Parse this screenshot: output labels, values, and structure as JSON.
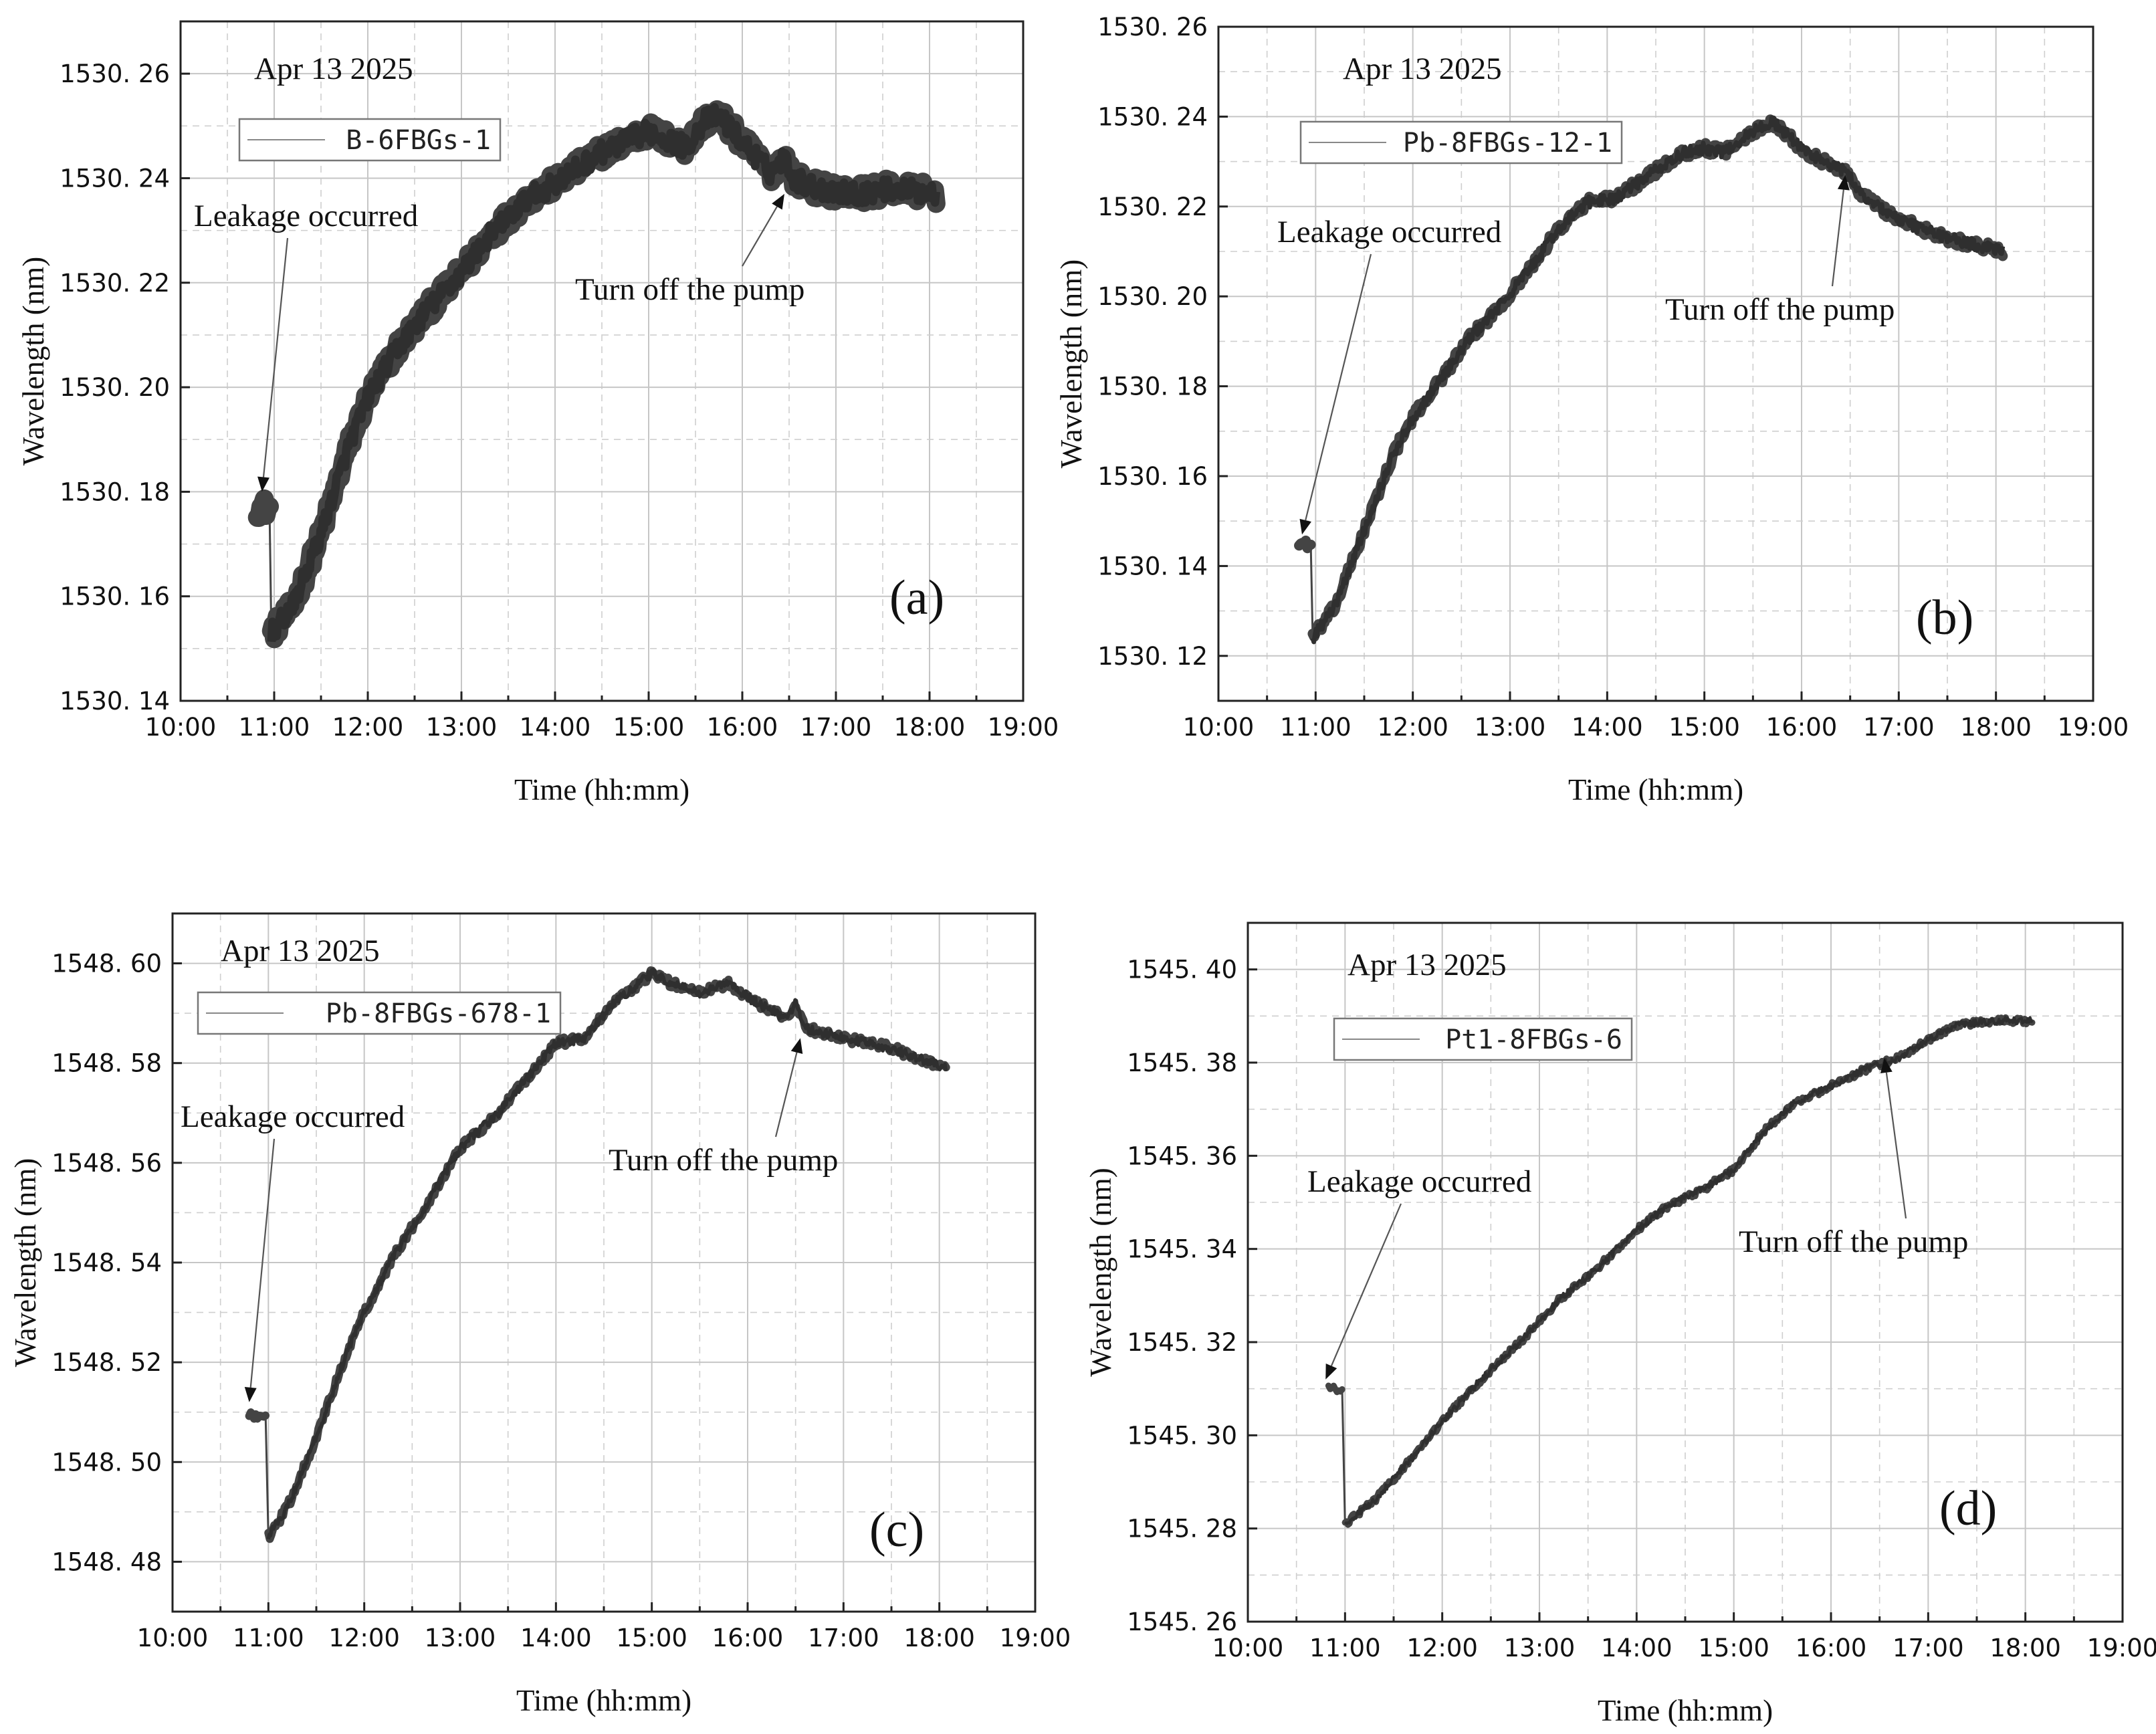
{
  "figure": {
    "panels_order": [
      "a",
      "b",
      "c",
      "d"
    ]
  },
  "chart_data": [
    {
      "id": "a",
      "type": "line",
      "panel_label": "(a)",
      "date": "Apr 13 2025",
      "legend": "B-6FBGs-1",
      "xlabel": "Time (hh:mm)",
      "ylabel": "Wavelength (nm)",
      "xlim": [
        10,
        19
      ],
      "ylim": [
        1530.14,
        1530.27
      ],
      "xticks": [
        10,
        11,
        12,
        13,
        14,
        15,
        16,
        17,
        18,
        19
      ],
      "xtick_labels": [
        "10:00",
        "11:00",
        "12:00",
        "13:00",
        "14:00",
        "15:00",
        "16:00",
        "17:00",
        "18:00",
        "19:00"
      ],
      "yticks": [
        1530.14,
        1530.16,
        1530.18,
        1530.2,
        1530.22,
        1530.24,
        1530.26
      ],
      "ytick_labels": [
        "1530. 14",
        "1530. 16",
        "1530. 18",
        "1530. 20",
        "1530. 22",
        "1530. 24",
        "1530. 26"
      ],
      "noise": 0.004,
      "segment_before_leak": [
        [
          10.82,
          1530.177
        ],
        [
          10.95,
          1530.177
        ]
      ],
      "series": [
        [
          10.97,
          1530.153
        ],
        [
          11.2,
          1530.158
        ],
        [
          11.5,
          1530.172
        ],
        [
          11.8,
          1530.189
        ],
        [
          12.0,
          1530.198
        ],
        [
          12.3,
          1530.207
        ],
        [
          12.6,
          1530.214
        ],
        [
          13.0,
          1530.222
        ],
        [
          13.3,
          1530.229
        ],
        [
          13.7,
          1530.236
        ],
        [
          14.0,
          1530.239
        ],
        [
          14.5,
          1530.245
        ],
        [
          15.0,
          1530.249
        ],
        [
          15.25,
          1530.247
        ],
        [
          15.4,
          1530.246
        ],
        [
          15.6,
          1530.251
        ],
        [
          15.75,
          1530.252
        ],
        [
          16.0,
          1530.247
        ],
        [
          16.3,
          1530.241
        ],
        [
          16.45,
          1530.244
        ],
        [
          16.55,
          1530.24
        ],
        [
          16.8,
          1530.238
        ],
        [
          17.2,
          1530.237
        ],
        [
          17.6,
          1530.238
        ],
        [
          18.07,
          1530.237
        ]
      ],
      "annotations": [
        {
          "text": "Leakage occurred",
          "target": [
            10.87,
            1530.18
          ]
        },
        {
          "text": "Turn off the pump",
          "target": [
            16.45,
            1530.237
          ]
        }
      ]
    },
    {
      "id": "b",
      "type": "line",
      "panel_label": "(b)",
      "date": "Apr 13 2025",
      "legend": "Pb-8FBGs-12-1",
      "xlabel": "Time (hh:mm)",
      "ylabel": "Wavelength (nm)",
      "xlim": [
        10,
        19
      ],
      "ylim": [
        1530.11,
        1530.26
      ],
      "xticks": [
        10,
        11,
        12,
        13,
        14,
        15,
        16,
        17,
        18,
        19
      ],
      "xtick_labels": [
        "10:00",
        "11:00",
        "12:00",
        "13:00",
        "14:00",
        "15:00",
        "16:00",
        "17:00",
        "18:00",
        "19:00"
      ],
      "yticks": [
        1530.12,
        1530.14,
        1530.16,
        1530.18,
        1530.2,
        1530.22,
        1530.24,
        1530.26
      ],
      "ytick_labels": [
        "1530. 12",
        "1530. 14",
        "1530. 16",
        "1530. 18",
        "1530. 20",
        "1530. 22",
        "1530. 24",
        "1530. 26"
      ],
      "noise": 0.0025,
      "segment_before_leak": [
        [
          10.83,
          1530.145
        ],
        [
          10.95,
          1530.145
        ]
      ],
      "series": [
        [
          10.97,
          1530.124
        ],
        [
          11.2,
          1530.131
        ],
        [
          11.5,
          1530.148
        ],
        [
          11.8,
          1530.165
        ],
        [
          12.0,
          1530.173
        ],
        [
          12.3,
          1530.182
        ],
        [
          12.6,
          1530.191
        ],
        [
          12.9,
          1530.198
        ],
        [
          13.2,
          1530.206
        ],
        [
          13.5,
          1530.215
        ],
        [
          13.8,
          1530.221
        ],
        [
          14.1,
          1530.222
        ],
        [
          14.5,
          1530.228
        ],
        [
          14.8,
          1530.232
        ],
        [
          15.0,
          1530.233
        ],
        [
          15.2,
          1530.232
        ],
        [
          15.45,
          1530.236
        ],
        [
          15.7,
          1530.239
        ],
        [
          16.0,
          1530.233
        ],
        [
          16.3,
          1530.229
        ],
        [
          16.45,
          1530.228
        ],
        [
          16.6,
          1530.223
        ],
        [
          17.0,
          1530.217
        ],
        [
          17.5,
          1530.213
        ],
        [
          18.07,
          1530.21
        ]
      ],
      "annotations": [
        {
          "text": "Leakage occurred",
          "target": [
            10.86,
            1530.147
          ]
        },
        {
          "text": "Turn off the pump",
          "target": [
            16.45,
            1530.227
          ]
        }
      ]
    },
    {
      "id": "c",
      "type": "line",
      "panel_label": "(c)",
      "date": "Apr 13 2025",
      "legend": "Pb-8FBGs-678-1",
      "xlabel": "Time (hh:mm)",
      "ylabel": "Wavelength (nm)",
      "xlim": [
        10,
        19
      ],
      "ylim": [
        1548.47,
        1548.61
      ],
      "xticks": [
        10,
        11,
        12,
        13,
        14,
        15,
        16,
        17,
        18,
        19
      ],
      "xtick_labels": [
        "10:00",
        "11:00",
        "12:00",
        "13:00",
        "14:00",
        "15:00",
        "16:00",
        "17:00",
        "18:00",
        "19:00"
      ],
      "yticks": [
        1548.48,
        1548.5,
        1548.52,
        1548.54,
        1548.56,
        1548.58,
        1548.6
      ],
      "ytick_labels": [
        "1548. 48",
        "1548. 50",
        "1548. 52",
        "1548. 54",
        "1548. 56",
        "1548. 58",
        "1548. 60"
      ],
      "noise": 0.0018,
      "segment_before_leak": [
        [
          10.8,
          1548.509
        ],
        [
          10.97,
          1548.51
        ]
      ],
      "series": [
        [
          11.0,
          1548.485
        ],
        [
          11.2,
          1548.491
        ],
        [
          11.5,
          1548.505
        ],
        [
          11.8,
          1548.521
        ],
        [
          12.0,
          1548.53
        ],
        [
          12.3,
          1548.541
        ],
        [
          12.6,
          1548.55
        ],
        [
          13.0,
          1548.563
        ],
        [
          13.4,
          1548.57
        ],
        [
          13.7,
          1548.577
        ],
        [
          14.0,
          1548.584
        ],
        [
          14.3,
          1548.585
        ],
        [
          14.6,
          1548.592
        ],
        [
          15.0,
          1548.598
        ],
        [
          15.2,
          1548.596
        ],
        [
          15.5,
          1548.594
        ],
        [
          15.8,
          1548.596
        ],
        [
          16.1,
          1548.592
        ],
        [
          16.4,
          1548.589
        ],
        [
          16.5,
          1548.592
        ],
        [
          16.6,
          1548.587
        ],
        [
          17.0,
          1548.585
        ],
        [
          17.5,
          1548.583
        ],
        [
          18.07,
          1548.579
        ]
      ],
      "annotations": [
        {
          "text": "Leakage occurred",
          "target": [
            10.8,
            1548.512
          ]
        },
        {
          "text": "Turn off the pump",
          "target": [
            16.55,
            1548.585
          ]
        }
      ]
    },
    {
      "id": "d",
      "type": "line",
      "panel_label": "(d)",
      "date": "Apr 13 2025",
      "legend": "Pt1-8FBGs-6",
      "xlabel": "Time (hh:mm)",
      "ylabel": "Wavelength (nm)",
      "xlim": [
        10,
        19
      ],
      "ylim": [
        1545.26,
        1545.41
      ],
      "xticks": [
        10,
        11,
        12,
        13,
        14,
        15,
        16,
        17,
        18,
        19
      ],
      "xtick_labels": [
        "10:00",
        "11:00",
        "12:00",
        "13:00",
        "14:00",
        "15:00",
        "16:00",
        "17:00",
        "18:00",
        "19:00"
      ],
      "yticks": [
        1545.26,
        1545.28,
        1545.3,
        1545.32,
        1545.34,
        1545.36,
        1545.38,
        1545.4
      ],
      "ytick_labels": [
        "1545. 26",
        "1545. 28",
        "1545. 30",
        "1545. 32",
        "1545. 34",
        "1545. 36",
        "1545. 38",
        "1545. 40"
      ],
      "noise": 0.0015,
      "segment_before_leak": [
        [
          10.83,
          1545.31
        ],
        [
          10.97,
          1545.31
        ]
      ],
      "series": [
        [
          11.0,
          1545.281
        ],
        [
          11.3,
          1545.286
        ],
        [
          11.6,
          1545.293
        ],
        [
          12.0,
          1545.303
        ],
        [
          12.4,
          1545.312
        ],
        [
          12.8,
          1545.32
        ],
        [
          13.2,
          1545.329
        ],
        [
          13.6,
          1545.336
        ],
        [
          14.0,
          1545.344
        ],
        [
          14.3,
          1545.349
        ],
        [
          14.7,
          1545.353
        ],
        [
          15.0,
          1545.357
        ],
        [
          15.3,
          1545.365
        ],
        [
          15.6,
          1545.371
        ],
        [
          16.0,
          1545.375
        ],
        [
          16.4,
          1545.379
        ],
        [
          16.7,
          1545.381
        ],
        [
          17.0,
          1545.385
        ],
        [
          17.3,
          1545.388
        ],
        [
          17.7,
          1545.389
        ],
        [
          18.07,
          1545.389
        ]
      ],
      "annotations": [
        {
          "text": "Leakage occurred",
          "target": [
            10.8,
            1545.312
          ]
        },
        {
          "text": "Turn off the pump",
          "target": [
            16.55,
            1545.381
          ]
        }
      ]
    }
  ]
}
